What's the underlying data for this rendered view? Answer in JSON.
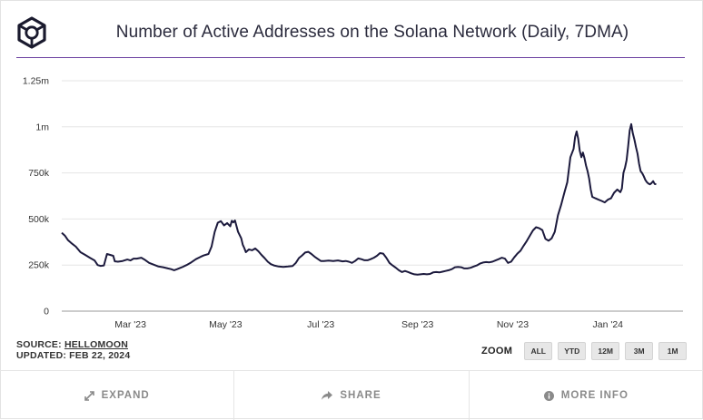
{
  "title": "Number of Active Addresses on the Solana Network (Daily, 7DMA)",
  "meta": {
    "source_prefix": "SOURCE: ",
    "source_name": "HELLOMOON",
    "updated": "UPDATED: FEB 22, 2024"
  },
  "zoom": {
    "label": "ZOOM",
    "options": [
      "ALL",
      "YTD",
      "12M",
      "3M",
      "1M"
    ]
  },
  "footer": {
    "expand": "EXPAND",
    "share": "SHARE",
    "more_info": "MORE INFO"
  },
  "colors": {
    "line": "#1c1a3d",
    "accent": "#6b3fa0",
    "grid": "#e6e6e6"
  },
  "chart_data": {
    "type": "line",
    "title": "Number of Active Addresses on the Solana Network (Daily, 7DMA)",
    "xlabel": "",
    "ylabel": "",
    "x_range": [
      0,
      358
    ],
    "ylim": [
      0,
      1250000
    ],
    "y_ticks": [
      0,
      250000,
      500000,
      750000,
      1000000,
      1250000
    ],
    "y_tick_labels": [
      "0",
      "250k",
      "500k",
      "750k",
      "1m",
      "1.25m"
    ],
    "x_ticks": [
      44,
      105,
      166,
      228,
      289,
      350
    ],
    "x_tick_labels": [
      "Mar '23",
      "May '23",
      "Jul '23",
      "Sep '23",
      "Nov '23",
      "Jan '24"
    ],
    "grid": true,
    "legend": "none",
    "series": [
      {
        "name": "Active Addresses (7DMA)",
        "points": [
          [
            0,
            425000
          ],
          [
            2,
            410000
          ],
          [
            4,
            385000
          ],
          [
            6,
            370000
          ],
          [
            9,
            350000
          ],
          [
            12,
            320000
          ],
          [
            15,
            305000
          ],
          [
            18,
            290000
          ],
          [
            21,
            275000
          ],
          [
            23,
            250000
          ],
          [
            25,
            245000
          ],
          [
            27,
            248000
          ],
          [
            29,
            310000
          ],
          [
            31,
            305000
          ],
          [
            33,
            300000
          ],
          [
            34,
            270000
          ],
          [
            36,
            268000
          ],
          [
            39,
            272000
          ],
          [
            42,
            280000
          ],
          [
            44,
            275000
          ],
          [
            46,
            285000
          ],
          [
            48,
            285000
          ],
          [
            51,
            290000
          ],
          [
            53,
            280000
          ],
          [
            56,
            262000
          ],
          [
            59,
            252000
          ],
          [
            62,
            242000
          ],
          [
            65,
            238000
          ],
          [
            68,
            232000
          ],
          [
            70,
            228000
          ],
          [
            72,
            222000
          ],
          [
            74,
            228000
          ],
          [
            77,
            238000
          ],
          [
            80,
            250000
          ],
          [
            83,
            265000
          ],
          [
            86,
            282000
          ],
          [
            89,
            295000
          ],
          [
            91,
            302000
          ],
          [
            94,
            310000
          ],
          [
            96,
            350000
          ],
          [
            98,
            430000
          ],
          [
            100,
            480000
          ],
          [
            102,
            488000
          ],
          [
            104,
            465000
          ],
          [
            106,
            478000
          ],
          [
            108,
            460000
          ],
          [
            109,
            490000
          ],
          [
            110,
            482000
          ],
          [
            111,
            492000
          ],
          [
            113,
            430000
          ],
          [
            115,
            395000
          ],
          [
            116,
            360000
          ],
          [
            117,
            342000
          ],
          [
            118,
            320000
          ],
          [
            120,
            335000
          ],
          [
            122,
            330000
          ],
          [
            124,
            340000
          ],
          [
            126,
            325000
          ],
          [
            128,
            305000
          ],
          [
            130,
            288000
          ],
          [
            132,
            268000
          ],
          [
            134,
            255000
          ],
          [
            136,
            248000
          ],
          [
            139,
            242000
          ],
          [
            142,
            240000
          ],
          [
            145,
            242000
          ],
          [
            148,
            245000
          ],
          [
            150,
            262000
          ],
          [
            152,
            288000
          ],
          [
            154,
            302000
          ],
          [
            156,
            318000
          ],
          [
            158,
            322000
          ],
          [
            160,
            310000
          ],
          [
            162,
            296000
          ],
          [
            164,
            284000
          ],
          [
            166,
            272000
          ],
          [
            168,
            272000
          ],
          [
            171,
            274000
          ],
          [
            174,
            272000
          ],
          [
            177,
            275000
          ],
          [
            180,
            270000
          ],
          [
            182,
            272000
          ],
          [
            184,
            268000
          ],
          [
            186,
            262000
          ],
          [
            188,
            272000
          ],
          [
            190,
            286000
          ],
          [
            192,
            282000
          ],
          [
            194,
            276000
          ],
          [
            196,
            276000
          ],
          [
            198,
            282000
          ],
          [
            200,
            290000
          ],
          [
            202,
            300000
          ],
          [
            204,
            315000
          ],
          [
            206,
            312000
          ],
          [
            208,
            290000
          ],
          [
            210,
            262000
          ],
          [
            212,
            248000
          ],
          [
            214,
            236000
          ],
          [
            216,
            222000
          ],
          [
            218,
            212000
          ],
          [
            220,
            218000
          ],
          [
            222,
            212000
          ],
          [
            224,
            205000
          ],
          [
            226,
            200000
          ],
          [
            228,
            198000
          ],
          [
            230,
            200000
          ],
          [
            232,
            202000
          ],
          [
            234,
            200000
          ],
          [
            236,
            202000
          ],
          [
            238,
            210000
          ],
          [
            240,
            212000
          ],
          [
            242,
            210000
          ],
          [
            244,
            214000
          ],
          [
            246,
            218000
          ],
          [
            248,
            222000
          ],
          [
            250,
            228000
          ],
          [
            252,
            238000
          ],
          [
            254,
            240000
          ],
          [
            256,
            238000
          ],
          [
            258,
            232000
          ],
          [
            260,
            232000
          ],
          [
            262,
            235000
          ],
          [
            264,
            242000
          ],
          [
            266,
            248000
          ],
          [
            268,
            258000
          ],
          [
            270,
            264000
          ],
          [
            272,
            266000
          ],
          [
            274,
            265000
          ],
          [
            276,
            268000
          ],
          [
            278,
            275000
          ],
          [
            280,
            282000
          ],
          [
            282,
            290000
          ],
          [
            284,
            285000
          ],
          [
            286,
            262000
          ],
          [
            288,
            268000
          ],
          [
            290,
            292000
          ],
          [
            292,
            312000
          ],
          [
            294,
            328000
          ],
          [
            296,
            355000
          ],
          [
            298,
            380000
          ],
          [
            300,
            410000
          ],
          [
            302,
            438000
          ],
          [
            304,
            455000
          ],
          [
            306,
            450000
          ],
          [
            308,
            440000
          ],
          [
            310,
            392000
          ],
          [
            312,
            382000
          ],
          [
            314,
            395000
          ],
          [
            316,
            430000
          ],
          [
            318,
            520000
          ],
          [
            320,
            575000
          ],
          [
            322,
            640000
          ],
          [
            324,
            700000
          ],
          [
            326,
            835000
          ],
          [
            328,
            880000
          ],
          [
            329,
            945000
          ],
          [
            330,
            975000
          ],
          [
            331,
            935000
          ],
          [
            332,
            870000
          ],
          [
            333,
            835000
          ],
          [
            334,
            860000
          ],
          [
            335,
            830000
          ],
          [
            336,
            790000
          ],
          [
            337,
            760000
          ],
          [
            338,
            720000
          ],
          [
            339,
            660000
          ],
          [
            340,
            620000
          ],
          [
            342,
            612000
          ],
          [
            344,
            605000
          ],
          [
            346,
            598000
          ],
          [
            348,
            590000
          ],
          [
            350,
            605000
          ],
          [
            352,
            612000
          ],
          [
            354,
            642000
          ],
          [
            356,
            660000
          ],
          [
            358,
            645000
          ],
          [
            359,
            665000
          ],
          [
            360,
            750000
          ],
          [
            361,
            780000
          ],
          [
            362,
            820000
          ],
          [
            363,
            895000
          ],
          [
            364,
            980000
          ],
          [
            365,
            1015000
          ],
          [
            366,
            965000
          ],
          [
            367,
            930000
          ],
          [
            368,
            890000
          ],
          [
            369,
            855000
          ],
          [
            370,
            800000
          ],
          [
            371,
            760000
          ],
          [
            372,
            748000
          ],
          [
            373,
            732000
          ],
          [
            374,
            712000
          ],
          [
            375,
            700000
          ],
          [
            376,
            692000
          ],
          [
            377,
            688000
          ],
          [
            378,
            695000
          ],
          [
            379,
            705000
          ],
          [
            380,
            690000
          ],
          [
            381,
            688000
          ]
        ]
      }
    ]
  }
}
